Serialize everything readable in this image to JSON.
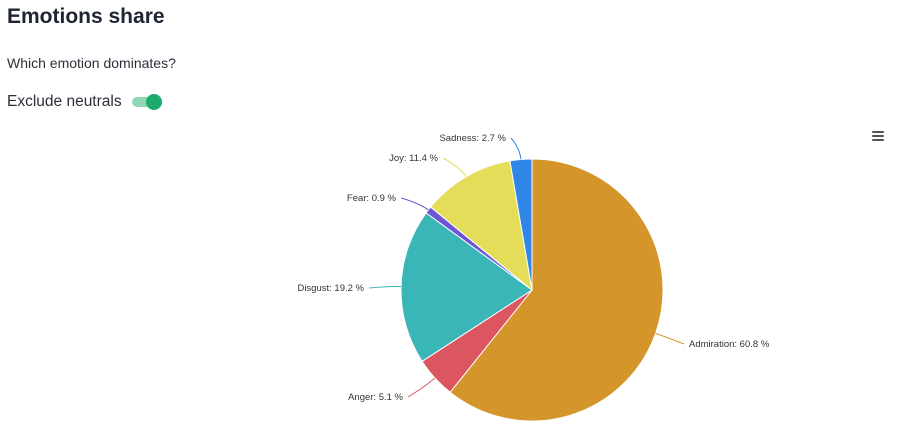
{
  "header": {
    "title": "Emotions share",
    "subtitle": "Which emotion dominates?"
  },
  "toggle": {
    "label": "Exclude neutrals",
    "checked": true,
    "accent_color": "#1aab6b"
  },
  "menu": {
    "icon": "hamburger-menu-icon"
  },
  "chart_data": {
    "type": "pie",
    "slices": [
      {
        "label": "Admiration",
        "value": 60.8,
        "display": "Admiration: 60.8 %",
        "color": "#d4952a"
      },
      {
        "label": "Anger",
        "value": 5.1,
        "display": "Anger: 5.1 %",
        "color": "#dc5661"
      },
      {
        "label": "Disgust",
        "value": 19.2,
        "display": "Disgust: 19.2 %",
        "color": "#3ab5b8"
      },
      {
        "label": "Fear",
        "value": 0.9,
        "display": "Fear: 0.9 %",
        "color": "#6b57d6"
      },
      {
        "label": "Joy",
        "value": 11.4,
        "display": "Joy: 11.4 %",
        "color": "#e3dd5a"
      },
      {
        "label": "Sadness",
        "value": 2.7,
        "display": "Sadness: 2.7 %",
        "color": "#2f86e6"
      }
    ]
  }
}
